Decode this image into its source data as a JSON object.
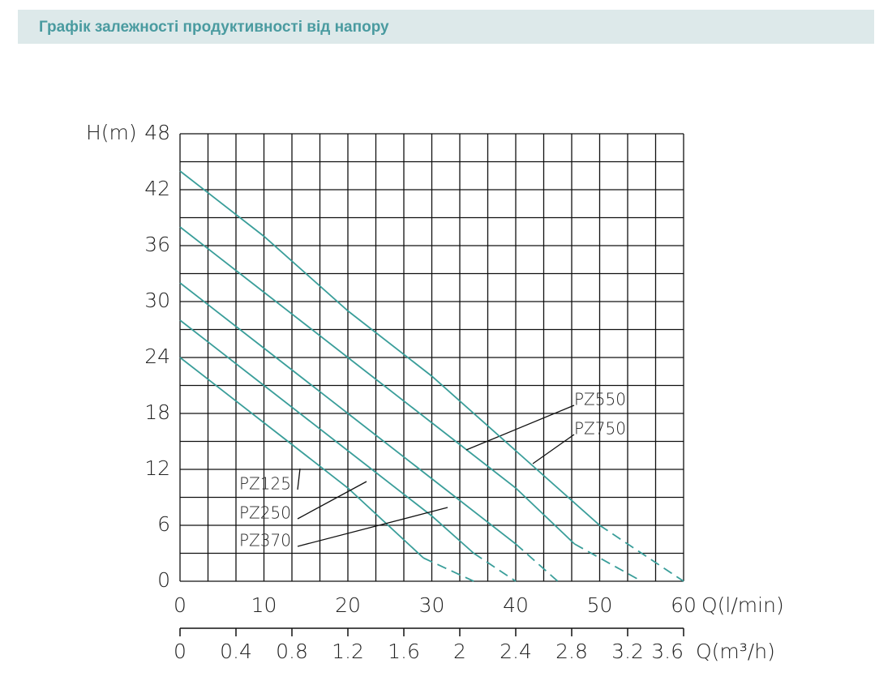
{
  "header": {
    "title": "Графік залежності продуктивності від напору"
  },
  "chart_data": {
    "type": "line",
    "y_label": "H(m)",
    "x_label": "Q(l/min)",
    "x2_label": "Q(m³/h)",
    "xlim": [
      0,
      60
    ],
    "xticks": [
      0,
      10,
      20,
      30,
      40,
      50,
      60
    ],
    "x2lim": [
      0,
      3.6
    ],
    "x2ticks": [
      0,
      0.4,
      0.8,
      1.2,
      1.6,
      2,
      2.4,
      2.8,
      3.2,
      3.6
    ],
    "ylim": [
      0,
      48
    ],
    "yticks": [
      0,
      6,
      12,
      18,
      24,
      30,
      36,
      42,
      48
    ],
    "grid": true,
    "series": [
      {
        "name": "PZ125",
        "color": "#3a9e9a",
        "x": [
          0,
          10,
          20,
          29,
          35
        ],
        "values": [
          24,
          17,
          10,
          2.5,
          0
        ]
      },
      {
        "name": "PZ250",
        "color": "#3a9e9a",
        "x": [
          0,
          10,
          20,
          30,
          35,
          40
        ],
        "values": [
          28,
          21,
          14,
          7,
          3,
          0
        ]
      },
      {
        "name": "PZ370",
        "color": "#3a9e9a",
        "x": [
          0,
          10,
          20,
          30,
          40,
          45
        ],
        "values": [
          32,
          25,
          18,
          11,
          4,
          0
        ]
      },
      {
        "name": "PZ550",
        "color": "#3a9e9a",
        "x": [
          0,
          10,
          20,
          30,
          40,
          47,
          55
        ],
        "values": [
          38,
          31,
          24,
          17,
          10,
          4,
          0
        ]
      },
      {
        "name": "PZ750",
        "color": "#3a9e9a",
        "x": [
          0,
          10,
          20,
          30,
          40,
          50,
          60
        ],
        "values": [
          44,
          37,
          29,
          22,
          14,
          6,
          0
        ]
      }
    ]
  }
}
